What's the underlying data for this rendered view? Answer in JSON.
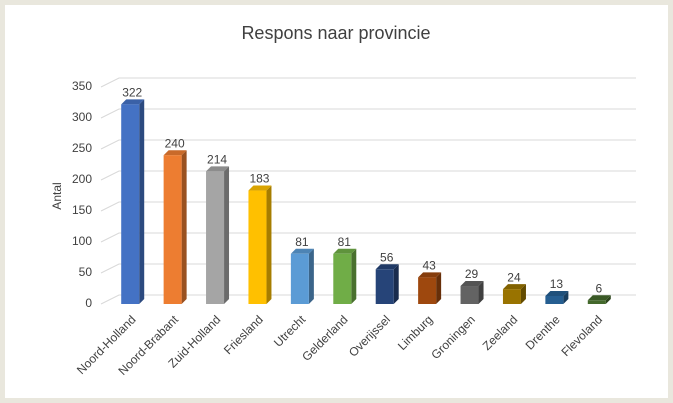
{
  "chart_data": {
    "type": "bar3d",
    "title": "Respons naar provincie",
    "y_label": "Antal",
    "categories": [
      "Noord-Holland",
      "Noord-Brabant",
      "Zuid-Holland",
      "Friesland",
      "Utrecht",
      "Gelderland",
      "Overijssel",
      "Limburg",
      "Groningen",
      "Zeeland",
      "Drenthe",
      "Flevoland"
    ],
    "values": [
      322,
      240,
      214,
      183,
      81,
      81,
      56,
      43,
      29,
      24,
      13,
      6
    ],
    "colors": [
      "#4472c4",
      "#ed7d31",
      "#a5a5a5",
      "#ffc000",
      "#5b9bd5",
      "#70ad47",
      "#264478",
      "#9e480e",
      "#636363",
      "#997300",
      "#255e91",
      "#43682b"
    ],
    "ylim": [
      0,
      350
    ],
    "yticks": [
      0,
      50,
      100,
      150,
      200,
      250,
      300,
      350
    ],
    "grid": true
  }
}
